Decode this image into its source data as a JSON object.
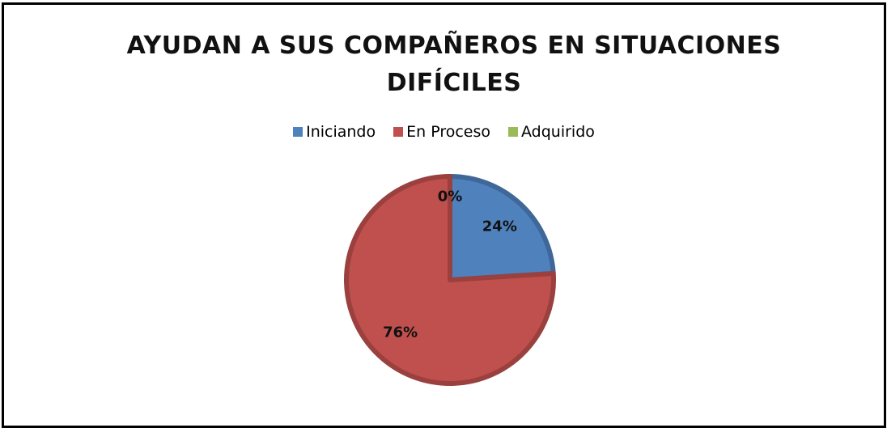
{
  "chart_data": {
    "type": "pie",
    "title": "AYUDAN A SUS COMPAÑEROS EN SITUACIONES DIFÍCILES",
    "categories": [
      "Iniciando",
      "En Proceso",
      "Adquirido"
    ],
    "values": [
      24,
      76,
      0
    ],
    "value_labels": [
      "24%",
      "76%",
      "0%"
    ],
    "colors": [
      "#4f81bd",
      "#c0504d",
      "#9bbb59"
    ],
    "legend": "top"
  }
}
